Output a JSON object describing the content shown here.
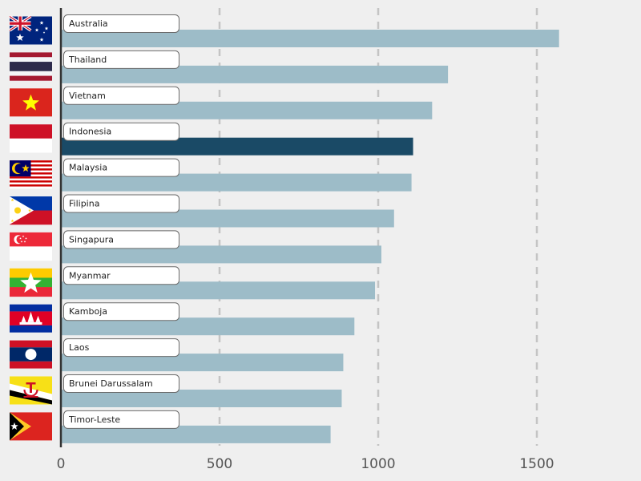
{
  "chart_data": {
    "type": "bar",
    "orientation": "horizontal",
    "categories": [
      "Australia",
      "Thailand",
      "Vietnam",
      "Indonesia",
      "Malaysia",
      "Filipina",
      "Singapura",
      "Myanmar",
      "Kamboja",
      "Laos",
      "Brunei Darussalam",
      "Timor-Leste"
    ],
    "values": [
      1570,
      1220,
      1170,
      1110,
      1105,
      1050,
      1010,
      990,
      925,
      890,
      885,
      850
    ],
    "flags": [
      "australia-flag",
      "thailand-flag",
      "vietnam-flag",
      "indonesia-flag",
      "malaysia-flag",
      "philippines-flag",
      "singapore-flag",
      "myanmar-flag",
      "cambodia-flag",
      "laos-flag",
      "brunei-flag",
      "timor-leste-flag"
    ],
    "highlight": "Indonesia",
    "xlim": [
      0,
      1600
    ],
    "xticks": [
      0,
      500,
      1000,
      1500
    ],
    "grid": "vertical-dashed",
    "title": "",
    "xlabel": "",
    "ylabel": "",
    "colors": {
      "bar": "#9dbcc8",
      "highlight_bar": "#1a4a66",
      "background": "#efefef",
      "grid": "#c4c4c4",
      "axis": "#333333",
      "tick_label": "#555555"
    }
  }
}
